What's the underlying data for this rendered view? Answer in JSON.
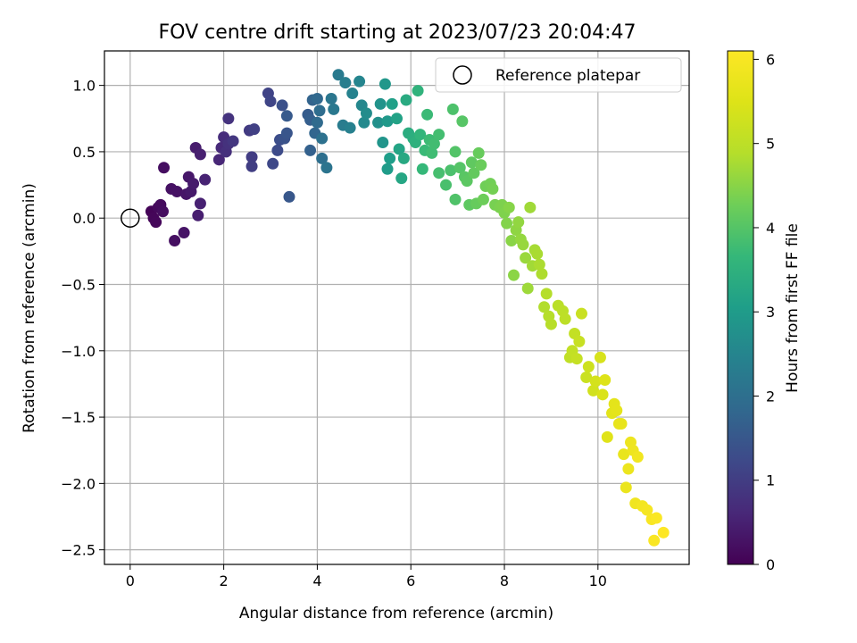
{
  "chart_data": {
    "type": "scatter",
    "title": "FOV centre drift starting at 2023/07/23 20:04:47",
    "xlabel": "Angular distance from reference (arcmin)",
    "ylabel": "Rotation from reference (arcmin)",
    "xlim": [
      -0.55,
      11.95
    ],
    "ylim": [
      -2.61,
      1.26
    ],
    "xticks": [
      0,
      2,
      4,
      6,
      8,
      10
    ],
    "yticks": [
      -2.5,
      -2.0,
      -1.5,
      -1.0,
      -0.5,
      0.0,
      0.5,
      1.0
    ],
    "xtick_labels": [
      "0",
      "2",
      "4",
      "6",
      "8",
      "10"
    ],
    "ytick_labels": [
      "−2.5",
      "−2.0",
      "−1.5",
      "−1.0",
      "−0.5",
      "0.0",
      "0.5",
      "1.0"
    ],
    "grid": true,
    "colormap": "viridis",
    "colorbar": {
      "label": "Hours from first FF file",
      "range": [
        0,
        6.1
      ],
      "ticks": [
        0,
        1,
        2,
        3,
        4,
        5,
        6
      ],
      "tick_labels": [
        "0",
        "1",
        "2",
        "3",
        "4",
        "5",
        "6"
      ]
    },
    "legend": {
      "position": "top-right",
      "entries": [
        "Reference platepar"
      ]
    },
    "reference_point": {
      "x": 0.0,
      "y": 0.0
    },
    "series_columns": [
      "x",
      "y",
      "hours"
    ],
    "points": [
      [
        0.45,
        0.05,
        0.05
      ],
      [
        0.5,
        0.0,
        0.08
      ],
      [
        0.55,
        -0.03,
        0.1
      ],
      [
        0.6,
        0.08,
        0.12
      ],
      [
        0.65,
        0.1,
        0.15
      ],
      [
        0.7,
        0.05,
        0.18
      ],
      [
        0.72,
        0.38,
        0.2
      ],
      [
        0.95,
        -0.17,
        0.22
      ],
      [
        0.88,
        0.22,
        0.25
      ],
      [
        1.0,
        0.2,
        0.27
      ],
      [
        1.15,
        -0.11,
        0.3
      ],
      [
        1.2,
        0.18,
        0.32
      ],
      [
        1.25,
        0.31,
        0.35
      ],
      [
        1.3,
        0.2,
        0.38
      ],
      [
        1.35,
        0.26,
        0.4
      ],
      [
        1.4,
        0.53,
        0.42
      ],
      [
        1.45,
        0.02,
        0.45
      ],
      [
        1.5,
        0.48,
        0.48
      ],
      [
        1.5,
        0.11,
        0.5
      ],
      [
        1.6,
        0.29,
        0.53
      ],
      [
        1.9,
        0.44,
        0.6
      ],
      [
        1.95,
        0.53,
        0.65
      ],
      [
        2.0,
        0.61,
        0.7
      ],
      [
        2.05,
        0.5,
        0.75
      ],
      [
        2.1,
        0.56,
        0.8
      ],
      [
        2.1,
        0.75,
        0.82
      ],
      [
        2.2,
        0.58,
        0.88
      ],
      [
        2.55,
        0.66,
        0.95
      ],
      [
        2.6,
        0.46,
        1.0
      ],
      [
        2.6,
        0.39,
        1.02
      ],
      [
        2.65,
        0.67,
        1.05
      ],
      [
        2.95,
        0.94,
        1.1
      ],
      [
        3.0,
        0.88,
        1.15
      ],
      [
        3.05,
        0.41,
        1.2
      ],
      [
        3.15,
        0.51,
        1.25
      ],
      [
        3.2,
        0.59,
        1.3
      ],
      [
        3.25,
        0.85,
        1.35
      ],
      [
        3.3,
        0.6,
        1.4
      ],
      [
        3.35,
        0.64,
        1.45
      ],
      [
        3.4,
        0.16,
        1.5
      ],
      [
        3.35,
        0.77,
        1.55
      ],
      [
        3.8,
        0.78,
        1.6
      ],
      [
        3.85,
        0.74,
        1.65
      ],
      [
        3.85,
        0.51,
        1.7
      ],
      [
        3.9,
        0.89,
        1.75
      ],
      [
        3.95,
        0.64,
        1.8
      ],
      [
        4.0,
        0.9,
        1.85
      ],
      [
        4.0,
        0.72,
        1.9
      ],
      [
        4.05,
        0.81,
        1.95
      ],
      [
        4.1,
        0.45,
        2.0
      ],
      [
        4.1,
        0.6,
        2.05
      ],
      [
        4.2,
        0.38,
        2.1
      ],
      [
        4.3,
        0.9,
        2.15
      ],
      [
        4.35,
        0.82,
        2.2
      ],
      [
        4.45,
        1.08,
        2.25
      ],
      [
        4.55,
        0.7,
        2.3
      ],
      [
        4.6,
        1.02,
        2.35
      ],
      [
        4.7,
        0.68,
        2.4
      ],
      [
        4.75,
        0.94,
        2.45
      ],
      [
        4.9,
        1.03,
        2.5
      ],
      [
        4.95,
        0.85,
        2.55
      ],
      [
        5.0,
        0.72,
        2.6
      ],
      [
        5.05,
        0.79,
        2.65
      ],
      [
        5.3,
        0.72,
        2.75
      ],
      [
        5.35,
        0.86,
        2.8
      ],
      [
        5.4,
        0.57,
        2.85
      ],
      [
        5.45,
        1.01,
        2.9
      ],
      [
        5.5,
        0.73,
        2.95
      ],
      [
        5.5,
        0.37,
        3.0
      ],
      [
        5.55,
        0.45,
        3.05
      ],
      [
        5.6,
        0.86,
        3.1
      ],
      [
        5.7,
        0.75,
        3.15
      ],
      [
        5.75,
        0.52,
        3.2
      ],
      [
        5.8,
        0.3,
        3.25
      ],
      [
        5.85,
        0.45,
        3.3
      ],
      [
        5.9,
        0.89,
        3.35
      ],
      [
        5.95,
        0.64,
        3.4
      ],
      [
        6.05,
        0.6,
        3.45
      ],
      [
        6.1,
        0.57,
        3.5
      ],
      [
        6.15,
        0.96,
        3.55
      ],
      [
        6.2,
        0.63,
        3.6
      ],
      [
        6.25,
        0.37,
        3.65
      ],
      [
        6.3,
        0.51,
        3.7
      ],
      [
        6.35,
        0.78,
        3.72
      ],
      [
        6.4,
        0.59,
        3.75
      ],
      [
        6.45,
        0.49,
        3.78
      ],
      [
        6.5,
        0.56,
        3.8
      ],
      [
        6.6,
        0.63,
        3.82
      ],
      [
        6.6,
        0.34,
        3.85
      ],
      [
        6.75,
        0.25,
        3.88
      ],
      [
        6.85,
        0.36,
        3.9
      ],
      [
        6.9,
        0.82,
        3.92
      ],
      [
        6.95,
        0.14,
        3.95
      ],
      [
        6.95,
        0.5,
        3.98
      ],
      [
        7.05,
        0.38,
        4.0
      ],
      [
        7.1,
        0.73,
        4.02
      ],
      [
        7.15,
        0.31,
        4.05
      ],
      [
        7.2,
        0.28,
        4.08
      ],
      [
        7.25,
        0.1,
        4.1
      ],
      [
        7.3,
        0.42,
        4.12
      ],
      [
        7.35,
        0.34,
        4.15
      ],
      [
        7.4,
        0.11,
        4.18
      ],
      [
        7.45,
        0.49,
        4.2
      ],
      [
        7.5,
        0.4,
        4.22
      ],
      [
        7.55,
        0.14,
        4.25
      ],
      [
        7.6,
        0.24,
        4.28
      ],
      [
        7.7,
        0.26,
        4.3
      ],
      [
        7.75,
        0.22,
        4.32
      ],
      [
        7.8,
        0.1,
        4.35
      ],
      [
        7.9,
        0.08,
        4.38
      ],
      [
        7.95,
        0.1,
        4.4
      ],
      [
        8.0,
        0.04,
        4.42
      ],
      [
        8.05,
        -0.04,
        4.45
      ],
      [
        8.1,
        0.08,
        4.48
      ],
      [
        8.15,
        -0.17,
        4.5
      ],
      [
        8.2,
        -0.43,
        4.52
      ],
      [
        8.25,
        -0.09,
        4.55
      ],
      [
        8.3,
        -0.03,
        4.58
      ],
      [
        8.35,
        -0.16,
        4.6
      ],
      [
        8.4,
        -0.2,
        4.62
      ],
      [
        8.45,
        -0.3,
        4.65
      ],
      [
        8.5,
        -0.53,
        4.68
      ],
      [
        8.55,
        0.08,
        4.7
      ],
      [
        8.6,
        -0.36,
        4.72
      ],
      [
        8.65,
        -0.24,
        4.75
      ],
      [
        8.7,
        -0.27,
        4.78
      ],
      [
        8.75,
        -0.35,
        4.8
      ],
      [
        8.8,
        -0.42,
        4.82
      ],
      [
        8.85,
        -0.67,
        4.85
      ],
      [
        8.9,
        -0.57,
        4.88
      ],
      [
        8.95,
        -0.74,
        4.9
      ],
      [
        9.0,
        -0.8,
        4.92
      ],
      [
        9.15,
        -0.66,
        4.95
      ],
      [
        9.25,
        -0.7,
        4.98
      ],
      [
        9.3,
        -0.76,
        5.0
      ],
      [
        9.4,
        -1.05,
        5.05
      ],
      [
        9.45,
        -1.0,
        5.08
      ],
      [
        9.5,
        -0.87,
        5.1
      ],
      [
        9.55,
        -1.06,
        5.12
      ],
      [
        9.6,
        -0.93,
        5.15
      ],
      [
        9.65,
        -0.72,
        5.18
      ],
      [
        9.75,
        -1.2,
        5.2
      ],
      [
        9.8,
        -1.12,
        5.25
      ],
      [
        9.9,
        -1.3,
        5.3
      ],
      [
        9.95,
        -1.23,
        5.35
      ],
      [
        10.05,
        -1.05,
        5.4
      ],
      [
        10.1,
        -1.33,
        5.45
      ],
      [
        10.15,
        -1.22,
        5.5
      ],
      [
        10.2,
        -1.65,
        5.55
      ],
      [
        10.3,
        -1.47,
        5.6
      ],
      [
        10.35,
        -1.4,
        5.62
      ],
      [
        10.4,
        -1.45,
        5.65
      ],
      [
        10.45,
        -1.55,
        5.68
      ],
      [
        10.5,
        -1.55,
        5.7
      ],
      [
        10.55,
        -1.78,
        5.72
      ],
      [
        10.6,
        -2.03,
        5.75
      ],
      [
        10.65,
        -1.89,
        5.78
      ],
      [
        10.7,
        -1.69,
        5.8
      ],
      [
        10.75,
        -1.75,
        5.82
      ],
      [
        10.8,
        -2.15,
        5.85
      ],
      [
        10.85,
        -1.8,
        5.88
      ],
      [
        10.95,
        -2.17,
        5.9
      ],
      [
        11.05,
        -2.2,
        5.95
      ],
      [
        11.15,
        -2.27,
        6.0
      ],
      [
        11.2,
        -2.43,
        6.02
      ],
      [
        11.25,
        -2.26,
        6.05
      ],
      [
        11.4,
        -2.37,
        6.1
      ]
    ]
  }
}
